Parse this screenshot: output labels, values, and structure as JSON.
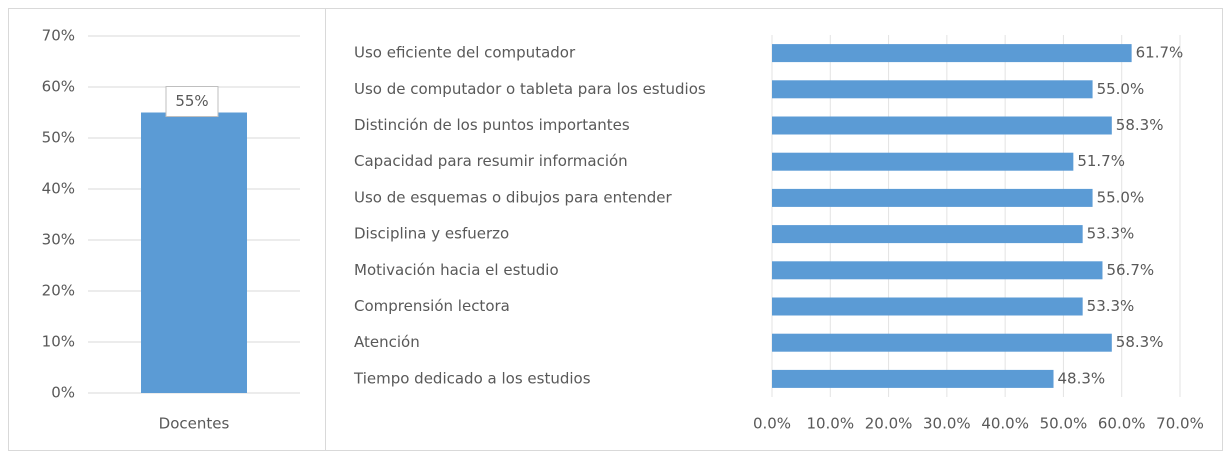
{
  "chart_data": [
    {
      "type": "bar",
      "orientation": "vertical",
      "categories": [
        "Docentes"
      ],
      "values": [
        55
      ],
      "value_labels": [
        "55%"
      ],
      "color": "#5b9bd5",
      "ylim": [
        0,
        70
      ],
      "yticks": [
        {
          "value": 0,
          "label": "0%"
        },
        {
          "value": 10,
          "label": "10%"
        },
        {
          "value": 20,
          "label": "20%"
        },
        {
          "value": 30,
          "label": "30%"
        },
        {
          "value": 40,
          "label": "40%"
        },
        {
          "value": 50,
          "label": "50%"
        },
        {
          "value": 60,
          "label": "60%"
        },
        {
          "value": 70,
          "label": "70%"
        }
      ],
      "grid": true
    },
    {
      "type": "bar",
      "orientation": "horizontal",
      "categories": [
        "Uso eficiente del computador",
        "Uso de computador o tableta para los estudios",
        "Distinción de los puntos importantes",
        "Capacidad para resumir información",
        "Uso de esquemas o dibujos para entender",
        "Disciplina y esfuerzo",
        "Motivación hacia el estudio",
        "Comprensión lectora",
        "Atención",
        "Tiempo dedicado a los estudios"
      ],
      "values": [
        61.7,
        55.0,
        58.3,
        51.7,
        55.0,
        53.3,
        56.7,
        53.3,
        58.3,
        48.3
      ],
      "value_labels": [
        "61.7%",
        "55.0%",
        "58.3%",
        "51.7%",
        "55.0%",
        "53.3%",
        "56.7%",
        "53.3%",
        "58.3%",
        "48.3%"
      ],
      "color": "#5b9bd5",
      "xlim": [
        0,
        70
      ],
      "xticks": [
        {
          "value": 0,
          "label": "0.0%"
        },
        {
          "value": 10,
          "label": "10.0%"
        },
        {
          "value": 20,
          "label": "20.0%"
        },
        {
          "value": 30,
          "label": "30.0%"
        },
        {
          "value": 40,
          "label": "40.0%"
        },
        {
          "value": 50,
          "label": "50.0%"
        },
        {
          "value": 60,
          "label": "60.0%"
        },
        {
          "value": 70,
          "label": "70.0%"
        }
      ],
      "grid": true
    }
  ]
}
